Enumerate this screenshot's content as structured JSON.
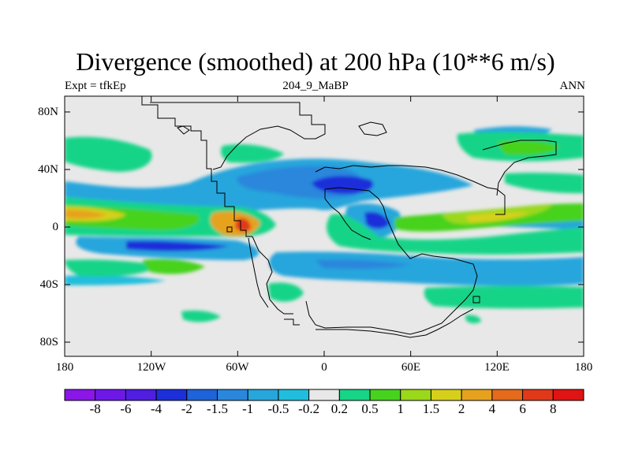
{
  "header": {
    "title": "Divergence (smoothed) at 200 hPa (10**6 m/s)",
    "left_label": "Expt = tfkEp",
    "center_label": "204_9_MaBP",
    "right_label": "ANN"
  },
  "map_axes": {
    "lat_ticks": [
      "80N",
      "40N",
      "0",
      "40S",
      "80S"
    ],
    "lon_ticks": [
      "180",
      "120W",
      "60W",
      "0",
      "60E",
      "120E",
      "180"
    ],
    "lon_range": [
      -180,
      180
    ],
    "lat_range": [
      -90,
      90
    ]
  },
  "colorbar": {
    "labels": [
      "-8",
      "-6",
      "-4",
      "-2",
      "-1.5",
      "-1",
      "-0.5",
      "-0.2",
      "0.2",
      "0.5",
      "1",
      "1.5",
      "2",
      "4",
      "6",
      "8"
    ],
    "colors": [
      "#8a16e8",
      "#6e18e8",
      "#4f1ee0",
      "#1c2fd9",
      "#1f63d8",
      "#2a87dc",
      "#27a6dc",
      "#20bedc",
      "#e8e8e8",
      "#18d487",
      "#47d21d",
      "#9bd81a",
      "#d6d01c",
      "#e6a21e",
      "#e46a1c",
      "#e0391a",
      "#e01414"
    ]
  },
  "colors": {
    "land_background": "#e8e8e8",
    "coastline": "#000000"
  }
}
